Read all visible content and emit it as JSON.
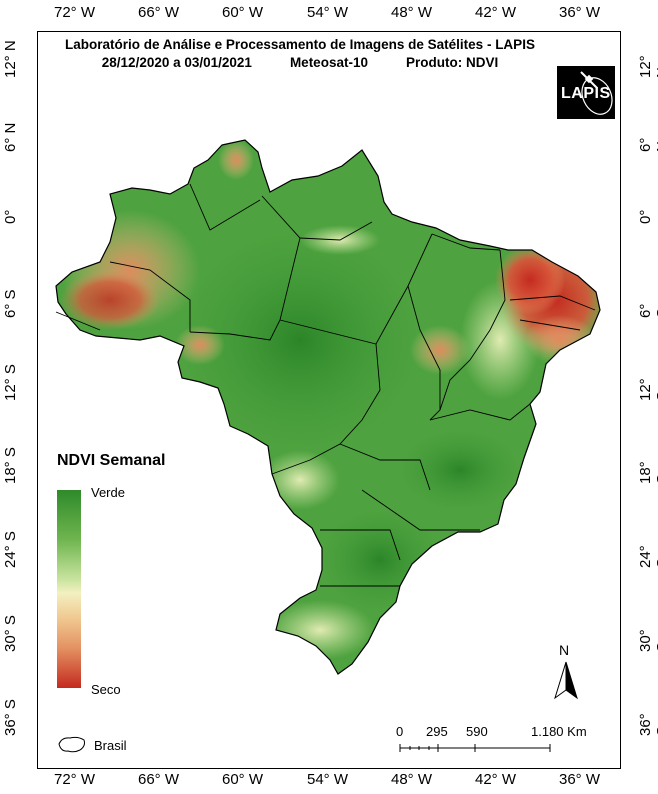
{
  "map": {
    "title_line1": "Laboratório de Análise e Processamento de Imagens de Satélites - LAPIS",
    "date_range": "28/12/2020  a  03/01/2021",
    "satellite": "Meteosat-10",
    "product": "Produto: NDVI",
    "logo_text": "LAPIS"
  },
  "longitude_ticks": [
    "72° W",
    "66° W",
    "60° W",
    "54° W",
    "48° W",
    "42° W",
    "36° W"
  ],
  "latitude_ticks": [
    "12° N",
    "6° N",
    "0°",
    "6° S",
    "12° S",
    "18° S",
    "24° S",
    "30° S",
    "36° S"
  ],
  "legend": {
    "title": "NDVI Semanal",
    "high_label": "Verde",
    "low_label": "Seco",
    "colors": [
      "#2e8a2a",
      "#6fb54f",
      "#c8e39e",
      "#f3f0c0",
      "#f0c890",
      "#e39162",
      "#c42a1f"
    ],
    "boundary_label": "Brasil"
  },
  "scale_bar": {
    "labels": [
      "0",
      "295",
      "590",
      "1.180 Km"
    ]
  },
  "north_arrow": {
    "label": "N"
  }
}
